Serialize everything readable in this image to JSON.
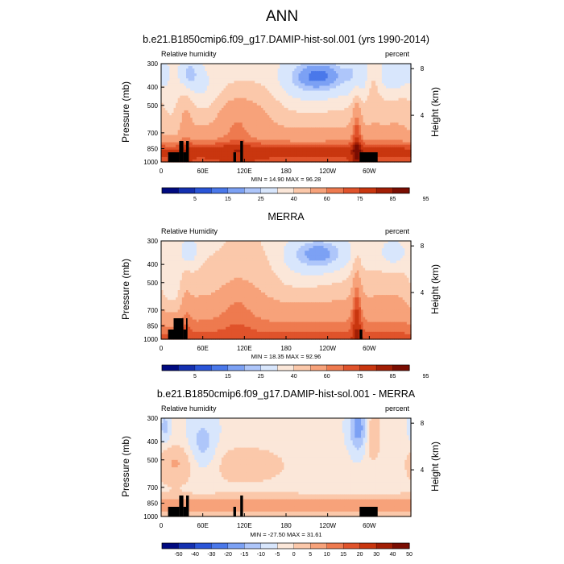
{
  "figure": {
    "title": "ANN"
  },
  "colors": {
    "abs": [
      "#000a80",
      "#1430b0",
      "#2a55d8",
      "#4a78ea",
      "#7ca1f4",
      "#aec6fa",
      "#d8e6fc",
      "#fbe7d9",
      "#fbc8aa",
      "#f7a27a",
      "#ee7a4f",
      "#e0532b",
      "#c9360f",
      "#a21e05",
      "#7a0d02"
    ],
    "diff": [
      "#000a80",
      "#1430b0",
      "#2a55d8",
      "#4a78ea",
      "#7ca1f4",
      "#aec6fa",
      "#d8e6fc",
      "#fbe7d9",
      "#fbc8aa",
      "#f7a27a",
      "#ee7a4f",
      "#e0532b",
      "#c9360f",
      "#a21e05",
      "#7a0d02"
    ]
  },
  "chart_data": [
    {
      "type": "heatmap",
      "title": "b.e21.B1850cmip6.f09_g17.DAMIP-hist-sol.001 (yrs 1990-2014)",
      "left_label": "Relative humidity",
      "right_label": "percent",
      "ylabel": "Pressure (mb)",
      "ylabel_right": "Height (km)",
      "x_ticks": [
        "0",
        "60E",
        "120E",
        "180",
        "120W",
        "60W"
      ],
      "x_tick_lon": [
        0,
        60,
        120,
        180,
        240,
        300
      ],
      "y_ticks": [
        "300",
        "400",
        "500",
        "700",
        "850",
        "1000"
      ],
      "y_tick_p": [
        300,
        400,
        500,
        700,
        850,
        1000
      ],
      "right_ticks": [
        "8",
        "4"
      ],
      "right_tick_km": [
        8,
        4
      ],
      "min_max": "MIN = 14.90  MAX = 96.28",
      "colorbar_labels": [
        "5",
        "15",
        "25",
        "40",
        "60",
        "75",
        "85",
        "95"
      ],
      "field": "model",
      "terrain": [
        [
          10,
          26
        ],
        [
          26,
          32
        ],
        [
          32,
          36
        ],
        [
          36,
          40
        ],
        [
          104,
          108
        ],
        [
          114,
          118
        ],
        [
          286,
          312
        ]
      ]
    },
    {
      "type": "heatmap",
      "title": "MERRA",
      "left_label": "Relative Humidity",
      "right_label": "percent",
      "ylabel": "Pressure (mb)",
      "ylabel_right": "Height (km)",
      "x_ticks": [
        "0",
        "60E",
        "120E",
        "180",
        "120W",
        "60W"
      ],
      "x_tick_lon": [
        0,
        60,
        120,
        180,
        240,
        300
      ],
      "y_ticks": [
        "300",
        "400",
        "500",
        "700",
        "850",
        "1000"
      ],
      "y_tick_p": [
        300,
        400,
        500,
        700,
        850,
        1000
      ],
      "right_ticks": [
        "8",
        "4"
      ],
      "right_tick_km": [
        8,
        4
      ],
      "min_max": "MIN = 18.35  MAX = 92.96",
      "colorbar_labels": [
        "5",
        "15",
        "25",
        "40",
        "60",
        "75",
        "85",
        "95"
      ],
      "field": "obs",
      "terrain": [
        [
          10,
          18
        ],
        [
          18,
          32
        ],
        [
          32,
          36
        ],
        [
          36,
          38
        ],
        [
          286,
          290
        ]
      ]
    },
    {
      "type": "heatmap",
      "title": "b.e21.B1850cmip6.f09_g17.DAMIP-hist-sol.001 - MERRA",
      "left_label": "Relative humidity",
      "right_label": "percent",
      "ylabel": "Pressure (mb)",
      "ylabel_right": "Height (km)",
      "x_ticks": [
        "0",
        "60E",
        "120E",
        "180",
        "120W",
        "60W"
      ],
      "x_tick_lon": [
        0,
        60,
        120,
        180,
        240,
        300
      ],
      "y_ticks": [
        "300",
        "400",
        "500",
        "700",
        "850",
        "1000"
      ],
      "y_tick_p": [
        300,
        400,
        500,
        700,
        850,
        1000
      ],
      "right_ticks": [
        "8",
        "4"
      ],
      "right_tick_km": [
        8,
        4
      ],
      "min_max": "MIN = -27.50  MAX = 31.61",
      "colorbar_labels": [
        "-50",
        "-40",
        "-30",
        "-20",
        "-15",
        "-10",
        "-5",
        "0",
        "5",
        "10",
        "15",
        "20",
        "30",
        "40",
        "50"
      ],
      "field": "diff",
      "terrain": [
        [
          10,
          26
        ],
        [
          26,
          32
        ],
        [
          32,
          36
        ],
        [
          36,
          40
        ],
        [
          104,
          108
        ],
        [
          114,
          118
        ],
        [
          286,
          312
        ]
      ]
    }
  ]
}
